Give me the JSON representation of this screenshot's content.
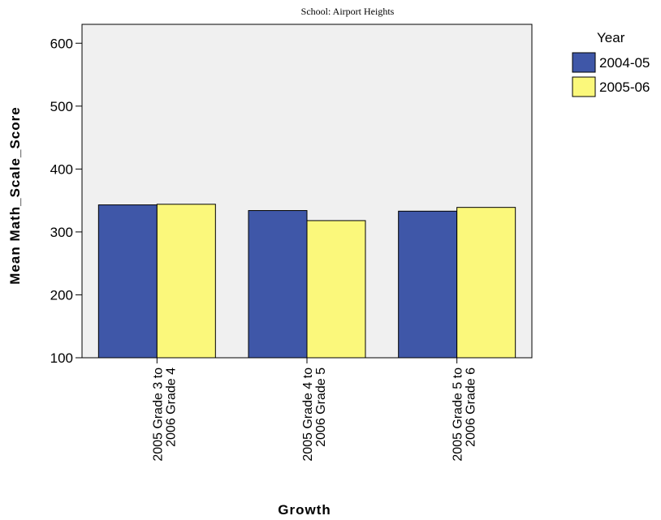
{
  "chart_data": {
    "type": "bar",
    "title": "School: Airport Heights",
    "xlabel": "Growth",
    "ylabel": "Mean Math_Scale_Score",
    "ylim": [
      100,
      630
    ],
    "yticks": [
      100,
      200,
      300,
      400,
      500,
      600
    ],
    "categories": [
      [
        "2005 Grade 3 to",
        "2006 Grade 4"
      ],
      [
        "2005 Grade 4 to",
        "2006 Grade 5"
      ],
      [
        "2005 Grade 5 to",
        "2006 Grade 6"
      ]
    ],
    "legend_title": "Year",
    "legend_position": "right",
    "grid": false,
    "series": [
      {
        "name": "2004-05",
        "color": "#3f57a8",
        "values": [
          343,
          334,
          333
        ]
      },
      {
        "name": "2005-06",
        "color": "#fbf87b",
        "values": [
          344,
          318,
          339
        ]
      }
    ]
  }
}
